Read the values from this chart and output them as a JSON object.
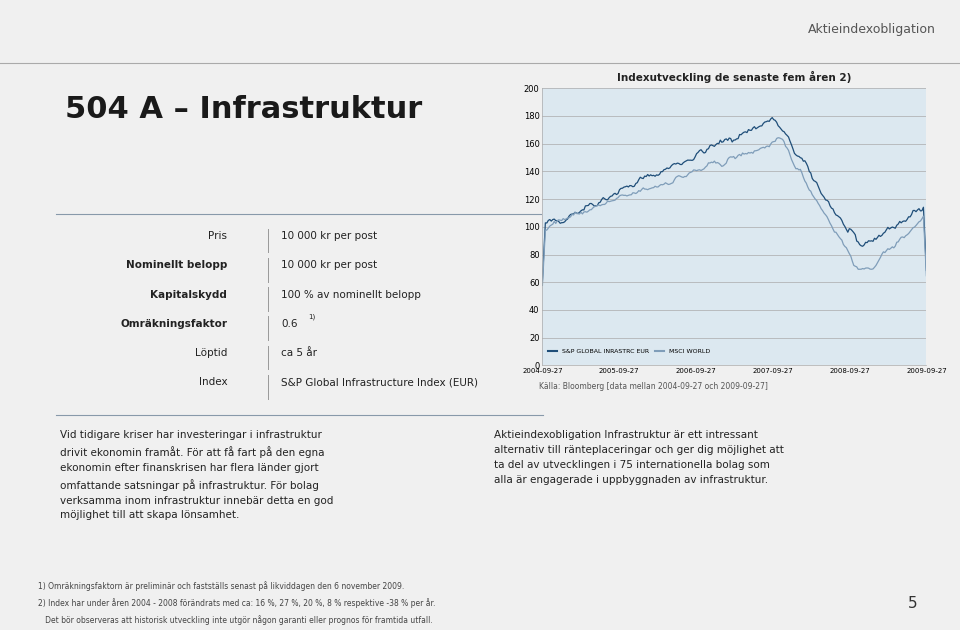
{
  "page_title": "Aktieindexobligation",
  "main_title": "504 A – Infrastruktur",
  "bg_color": "#dce8f0",
  "white_bg": "#ffffff",
  "table_rows": [
    [
      "Pris",
      "10 000 kr per post"
    ],
    [
      "Nominellt belopp",
      "10 000 kr per post"
    ],
    [
      "Kapitalskydd",
      "100 % av nominellt belopp"
    ],
    [
      "Omräkningsfaktor",
      "0.6"
    ],
    [
      "Löptid",
      "ca 5 år"
    ],
    [
      "Index",
      "S&P Global Infrastructure Index (EUR)"
    ]
  ],
  "chart_title": "Indexutveckling de senaste fem åren 2)",
  "x_labels": [
    "2004-09-27",
    "2005-09-27",
    "2006-09-27",
    "2007-09-27",
    "2008-09-27",
    "2009-09-27"
  ],
  "y_ticks": [
    0,
    20,
    40,
    60,
    80,
    100,
    120,
    140,
    160,
    180,
    200
  ],
  "source_text": "Källa: Bloomberg [data mellan 2004-09-27 och 2009-09-27]",
  "legend_sp": "S&P GLOBAL INRASTRC EUR",
  "legend_msci": "MSCI WORLD",
  "color_sp": "#1f4e79",
  "color_msci": "#7f9db9",
  "left_text": "Vid tidigare kriser har investeringar i infrastruktur\ndrivit ekonomin framåt. För att få fart på den egna\nekonomin efter finanskrisen har flera länder gjort\nomfattande satsningar på infrastruktur. För bolag\nverksamma inom infrastruktur innebär detta en god\nmöjlighet till att skapa lönsamhet.",
  "right_text": "Aktieindexobligation Infrastruktur är ett intressant\nalternativ till ränteplaceringar och ger dig möjlighet att\nta del av utvecklingen i 75 internationella bolag som\nalla är engagerade i uppbyggnaden av infrastruktur.",
  "footnote1": "1) Omräkningsfaktorn är preliminär och fastställs senast på likviddagen den 6 november 2009.",
  "footnote2": "2) Index har under åren 2004 - 2008 förändrats med ca: 16 %, 27 %, 20 %, 8 % respektive -38 % per år.",
  "footnote3": "   Det bör observeras att historisk utveckling inte utgör någon garanti eller prognos för framtida utfall.",
  "page_number": "5"
}
